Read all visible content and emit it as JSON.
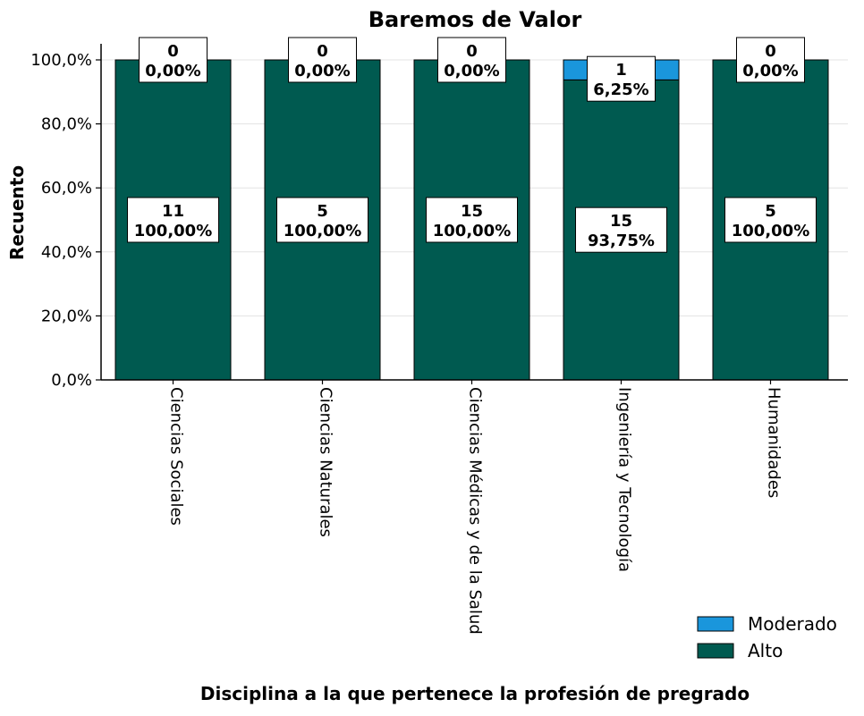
{
  "chart_data": {
    "type": "bar",
    "stacked": true,
    "percent": true,
    "title": "Baremos de Valor",
    "xlabel": "Disciplina a la que pertenece la profesión de pregrado",
    "ylabel": "Recuento",
    "ylim": [
      0,
      100
    ],
    "yticks": [
      "0,0%",
      "20,0%",
      "40,0%",
      "60,0%",
      "80,0%",
      "100,0%"
    ],
    "categories": [
      "Ciencias Sociales",
      "Ciencias Naturales",
      "Ciencias Médicas y de la Salud",
      "Ingeniería y Tecnología",
      "Humanidades"
    ],
    "series": [
      {
        "name": "Alto",
        "color": "#005a50",
        "counts": [
          11,
          5,
          15,
          15,
          5
        ],
        "values": [
          100.0,
          100.0,
          100.0,
          93.75,
          100.0
        ],
        "labels": [
          "100,00%",
          "100,00%",
          "100,00%",
          "93,75%",
          "100,00%"
        ]
      },
      {
        "name": "Moderado",
        "color": "#1a96dc",
        "counts": [
          0,
          0,
          0,
          1,
          0
        ],
        "values": [
          0.0,
          0.0,
          0.0,
          6.25,
          0.0
        ],
        "labels": [
          "0,00%",
          "0,00%",
          "0,00%",
          "6,25%",
          "0,00%"
        ]
      }
    ],
    "legend": {
      "position": "bottom-right",
      "order": [
        "Moderado",
        "Alto"
      ]
    },
    "grid": "horizontal"
  }
}
